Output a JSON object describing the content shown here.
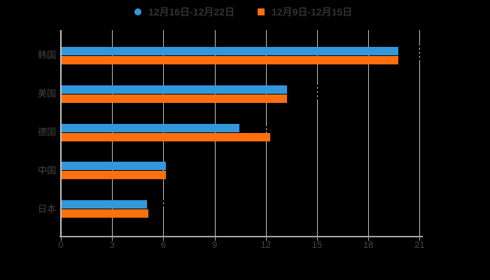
{
  "legend": {
    "items": [
      {
        "label": "12月16日-12月22日",
        "marker": "circle",
        "color": "#3398DB"
      },
      {
        "label": "12月9日-12月15日",
        "marker": "square",
        "color": "#FF6F0D"
      }
    ]
  },
  "chart_data": {
    "type": "bar",
    "orientation": "horizontal",
    "title": "",
    "categories": [
      "韩国",
      "美国",
      "德国",
      "中国",
      "日本"
    ],
    "series": [
      {
        "name": "12月16日-12月22日",
        "color": "#3398DB",
        "values": [
          19.7,
          13.2,
          10.4,
          6.1,
          5.0
        ]
      },
      {
        "name": "12月9日-12月15日",
        "color": "#FF6F0D",
        "values": [
          19.7,
          13.2,
          12.2,
          6.1,
          5.1
        ]
      }
    ],
    "xlabel": "",
    "ylabel": "",
    "xlim": [
      0,
      21
    ],
    "x_ticks": [
      0,
      3,
      6,
      9,
      12,
      15,
      18,
      21
    ],
    "grid": true,
    "legend_position": "top"
  },
  "colors": {
    "background": "#000000",
    "gridline": "#C6C6C6",
    "axis": "#A8A8A8",
    "tick_label": "#454545",
    "category_label": "#454545",
    "legend_text": "#333333",
    "series1": "#3398DB",
    "series2": "#FF6F0D"
  },
  "artifacts": {
    "dashed_gridline_breaks": [
      {
        "row": 0,
        "at_value": 21,
        "y_from": -14,
        "y_to": 9
      },
      {
        "row": 1,
        "at_value": 15,
        "y_from": -13,
        "y_to": 8
      },
      {
        "row": 2,
        "at_value": 12,
        "y_from": -9,
        "y_to": -1
      },
      {
        "row": 4,
        "at_value": 6,
        "y_from": -13,
        "y_to": -2
      }
    ]
  }
}
